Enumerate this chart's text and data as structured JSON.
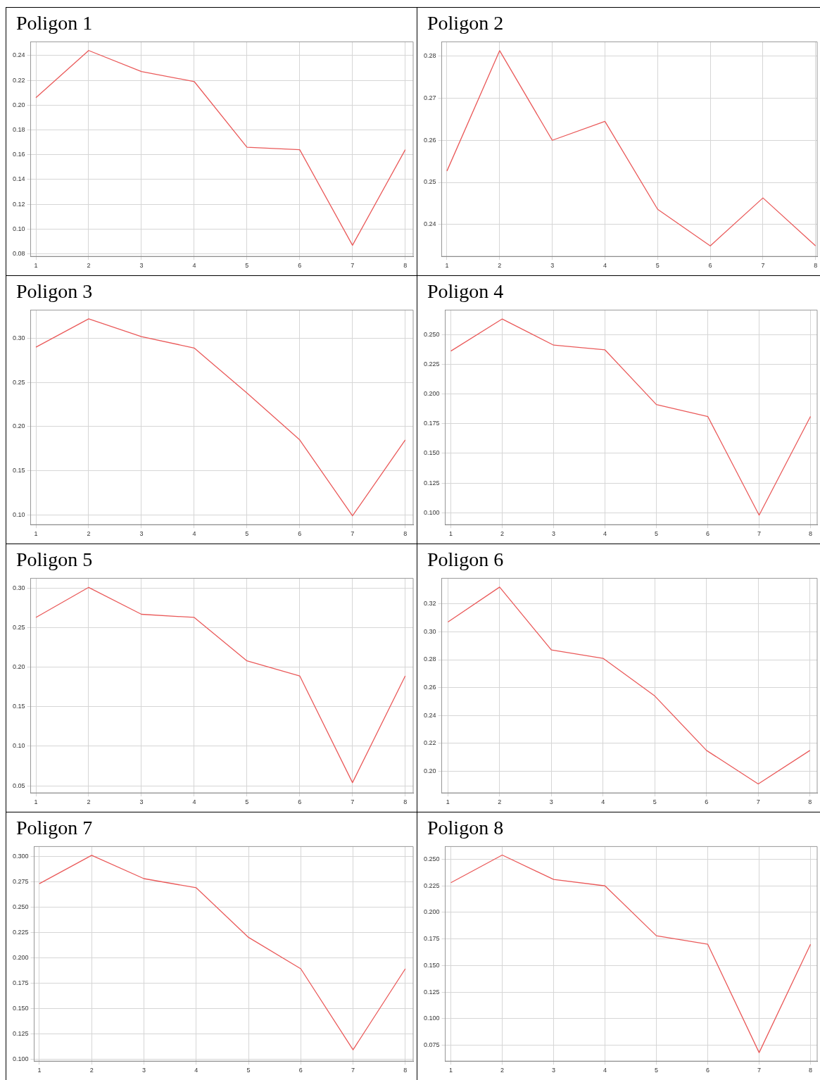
{
  "chart_data": [
    {
      "type": "line",
      "title": "Poligon 1",
      "x": [
        1,
        2,
        3,
        4,
        5,
        6,
        7,
        8
      ],
      "xlim": [
        0.9,
        8.15
      ],
      "xticks": [
        1,
        2,
        3,
        4,
        5,
        6,
        7,
        8
      ],
      "ylim": [
        0.078,
        0.251
      ],
      "yticks": [
        0.08,
        {
          "value": 0.1,
          "label": "0.10"
        },
        0.12,
        0.14,
        0.16,
        0.18,
        {
          "value": 0.2,
          "label": "0.20"
        },
        0.22,
        0.24
      ],
      "grid": true,
      "color": "#ea5a5a",
      "marker": "none",
      "values": [
        0.206,
        0.244,
        0.227,
        0.219,
        0.166,
        0.164,
        0.087,
        0.164
      ]
    },
    {
      "type": "line",
      "title": "Poligon 2",
      "x": [
        1,
        2,
        3,
        4,
        5,
        6,
        7,
        8
      ],
      "xlim": [
        0.9,
        8.03
      ],
      "xticks": [
        1,
        2,
        3,
        4,
        5,
        6,
        7,
        8
      ],
      "ylim": [
        0.2324,
        0.2834
      ],
      "yticks": [
        0.24,
        0.25,
        0.26,
        0.27,
        0.28
      ],
      "grid": true,
      "color": "#ea5a5a",
      "marker": "none",
      "values": [
        0.2527,
        0.2813,
        0.26,
        0.2645,
        0.2436,
        0.2349,
        0.2463,
        0.2349
      ]
    },
    {
      "type": "line",
      "title": "Poligon 3",
      "x": [
        1,
        2,
        3,
        4,
        5,
        6,
        7,
        8
      ],
      "xlim": [
        0.9,
        8.15
      ],
      "xticks": [
        1,
        2,
        3,
        4,
        5,
        6,
        7,
        8
      ],
      "ylim": [
        0.089,
        0.332
      ],
      "yticks": [
        {
          "value": 0.1,
          "label": "0.10"
        },
        0.15,
        {
          "value": 0.2,
          "label": "0.20"
        },
        0.25,
        {
          "value": 0.3,
          "label": "0.30"
        }
      ],
      "grid": true,
      "color": "#ea5a5a",
      "marker": "none",
      "values": [
        0.29,
        0.322,
        0.302,
        0.289,
        0.238,
        0.185,
        0.099,
        0.185
      ]
    },
    {
      "type": "line",
      "title": "Poligon 4",
      "x": [
        1,
        2,
        3,
        4,
        5,
        6,
        7,
        8
      ],
      "xlim": [
        0.89,
        8.13
      ],
      "xticks": [
        1,
        2,
        3,
        4,
        5,
        6,
        7,
        8
      ],
      "ylim": [
        0.09,
        0.2705
      ],
      "yticks": [
        {
          "value": 0.1,
          "label": "0.100"
        },
        0.125,
        {
          "value": 0.15,
          "label": "0.150"
        },
        0.175,
        {
          "value": 0.2,
          "label": "0.200"
        },
        0.225,
        {
          "value": 0.25,
          "label": "0.250"
        }
      ],
      "grid": true,
      "color": "#ea5a5a",
      "marker": "none",
      "values": [
        0.236,
        0.263,
        0.241,
        0.237,
        0.191,
        0.181,
        0.098,
        0.181
      ]
    },
    {
      "type": "line",
      "title": "Poligon 5",
      "x": [
        1,
        2,
        3,
        4,
        5,
        6,
        7,
        8
      ],
      "xlim": [
        0.9,
        8.15
      ],
      "xticks": [
        1,
        2,
        3,
        4,
        5,
        6,
        7,
        8
      ],
      "ylim": [
        0.041,
        0.3125
      ],
      "yticks": [
        0.05,
        {
          "value": 0.1,
          "label": "0.10"
        },
        0.15,
        {
          "value": 0.2,
          "label": "0.20"
        },
        0.25,
        {
          "value": 0.3,
          "label": "0.30"
        }
      ],
      "grid": true,
      "color": "#ea5a5a",
      "marker": "none",
      "values": [
        0.263,
        0.301,
        0.267,
        0.263,
        0.208,
        0.189,
        0.054,
        0.189
      ]
    },
    {
      "type": "line",
      "title": "Poligon 6",
      "x": [
        1,
        2,
        3,
        4,
        5,
        6,
        7,
        8
      ],
      "xlim": [
        0.88,
        8.14
      ],
      "xticks": [
        1,
        2,
        3,
        4,
        5,
        6,
        7,
        8
      ],
      "ylim": [
        0.1846,
        0.3383
      ],
      "yticks": [
        {
          "value": 0.2,
          "label": "0.20"
        },
        0.22,
        0.24,
        0.26,
        0.28,
        {
          "value": 0.3,
          "label": "0.30"
        },
        0.32
      ],
      "grid": true,
      "color": "#ea5a5a",
      "marker": "none",
      "values": [
        0.307,
        0.332,
        0.287,
        0.281,
        0.254,
        0.215,
        0.191,
        0.215
      ]
    },
    {
      "type": "line",
      "title": "Poligon 7",
      "x": [
        1,
        2,
        3,
        4,
        5,
        6,
        7,
        8
      ],
      "xlim": [
        0.9,
        8.15
      ],
      "xticks": [
        1,
        2,
        3,
        4,
        5,
        6,
        7,
        8
      ],
      "ylim": [
        0.0978,
        0.3097
      ],
      "yticks": [
        {
          "value": 0.1,
          "label": "0.100"
        },
        0.125,
        {
          "value": 0.15,
          "label": "0.150"
        },
        0.175,
        {
          "value": 0.2,
          "label": "0.200"
        },
        0.225,
        {
          "value": 0.25,
          "label": "0.250"
        },
        0.275,
        {
          "value": 0.3,
          "label": "0.300"
        }
      ],
      "grid": true,
      "color": "#ea5a5a",
      "marker": "none",
      "values": [
        0.273,
        0.301,
        0.278,
        0.269,
        0.22,
        0.189,
        0.109,
        0.189
      ]
    },
    {
      "type": "line",
      "title": "Poligon 8",
      "x": [
        1,
        2,
        3,
        4,
        5,
        6,
        7,
        8
      ],
      "xlim": [
        0.89,
        8.13
      ],
      "xticks": [
        1,
        2,
        3,
        4,
        5,
        6,
        7,
        8
      ],
      "ylim": [
        0.06,
        0.262
      ],
      "yticks": [
        0.075,
        {
          "value": 0.1,
          "label": "0.100"
        },
        0.125,
        {
          "value": 0.15,
          "label": "0.150"
        },
        0.175,
        {
          "value": 0.2,
          "label": "0.200"
        },
        0.225,
        {
          "value": 0.25,
          "label": "0.250"
        }
      ],
      "grid": true,
      "color": "#ea5a5a",
      "marker": "none",
      "values": [
        0.228,
        0.254,
        0.231,
        0.225,
        0.178,
        0.17,
        0.068,
        0.17
      ]
    }
  ]
}
